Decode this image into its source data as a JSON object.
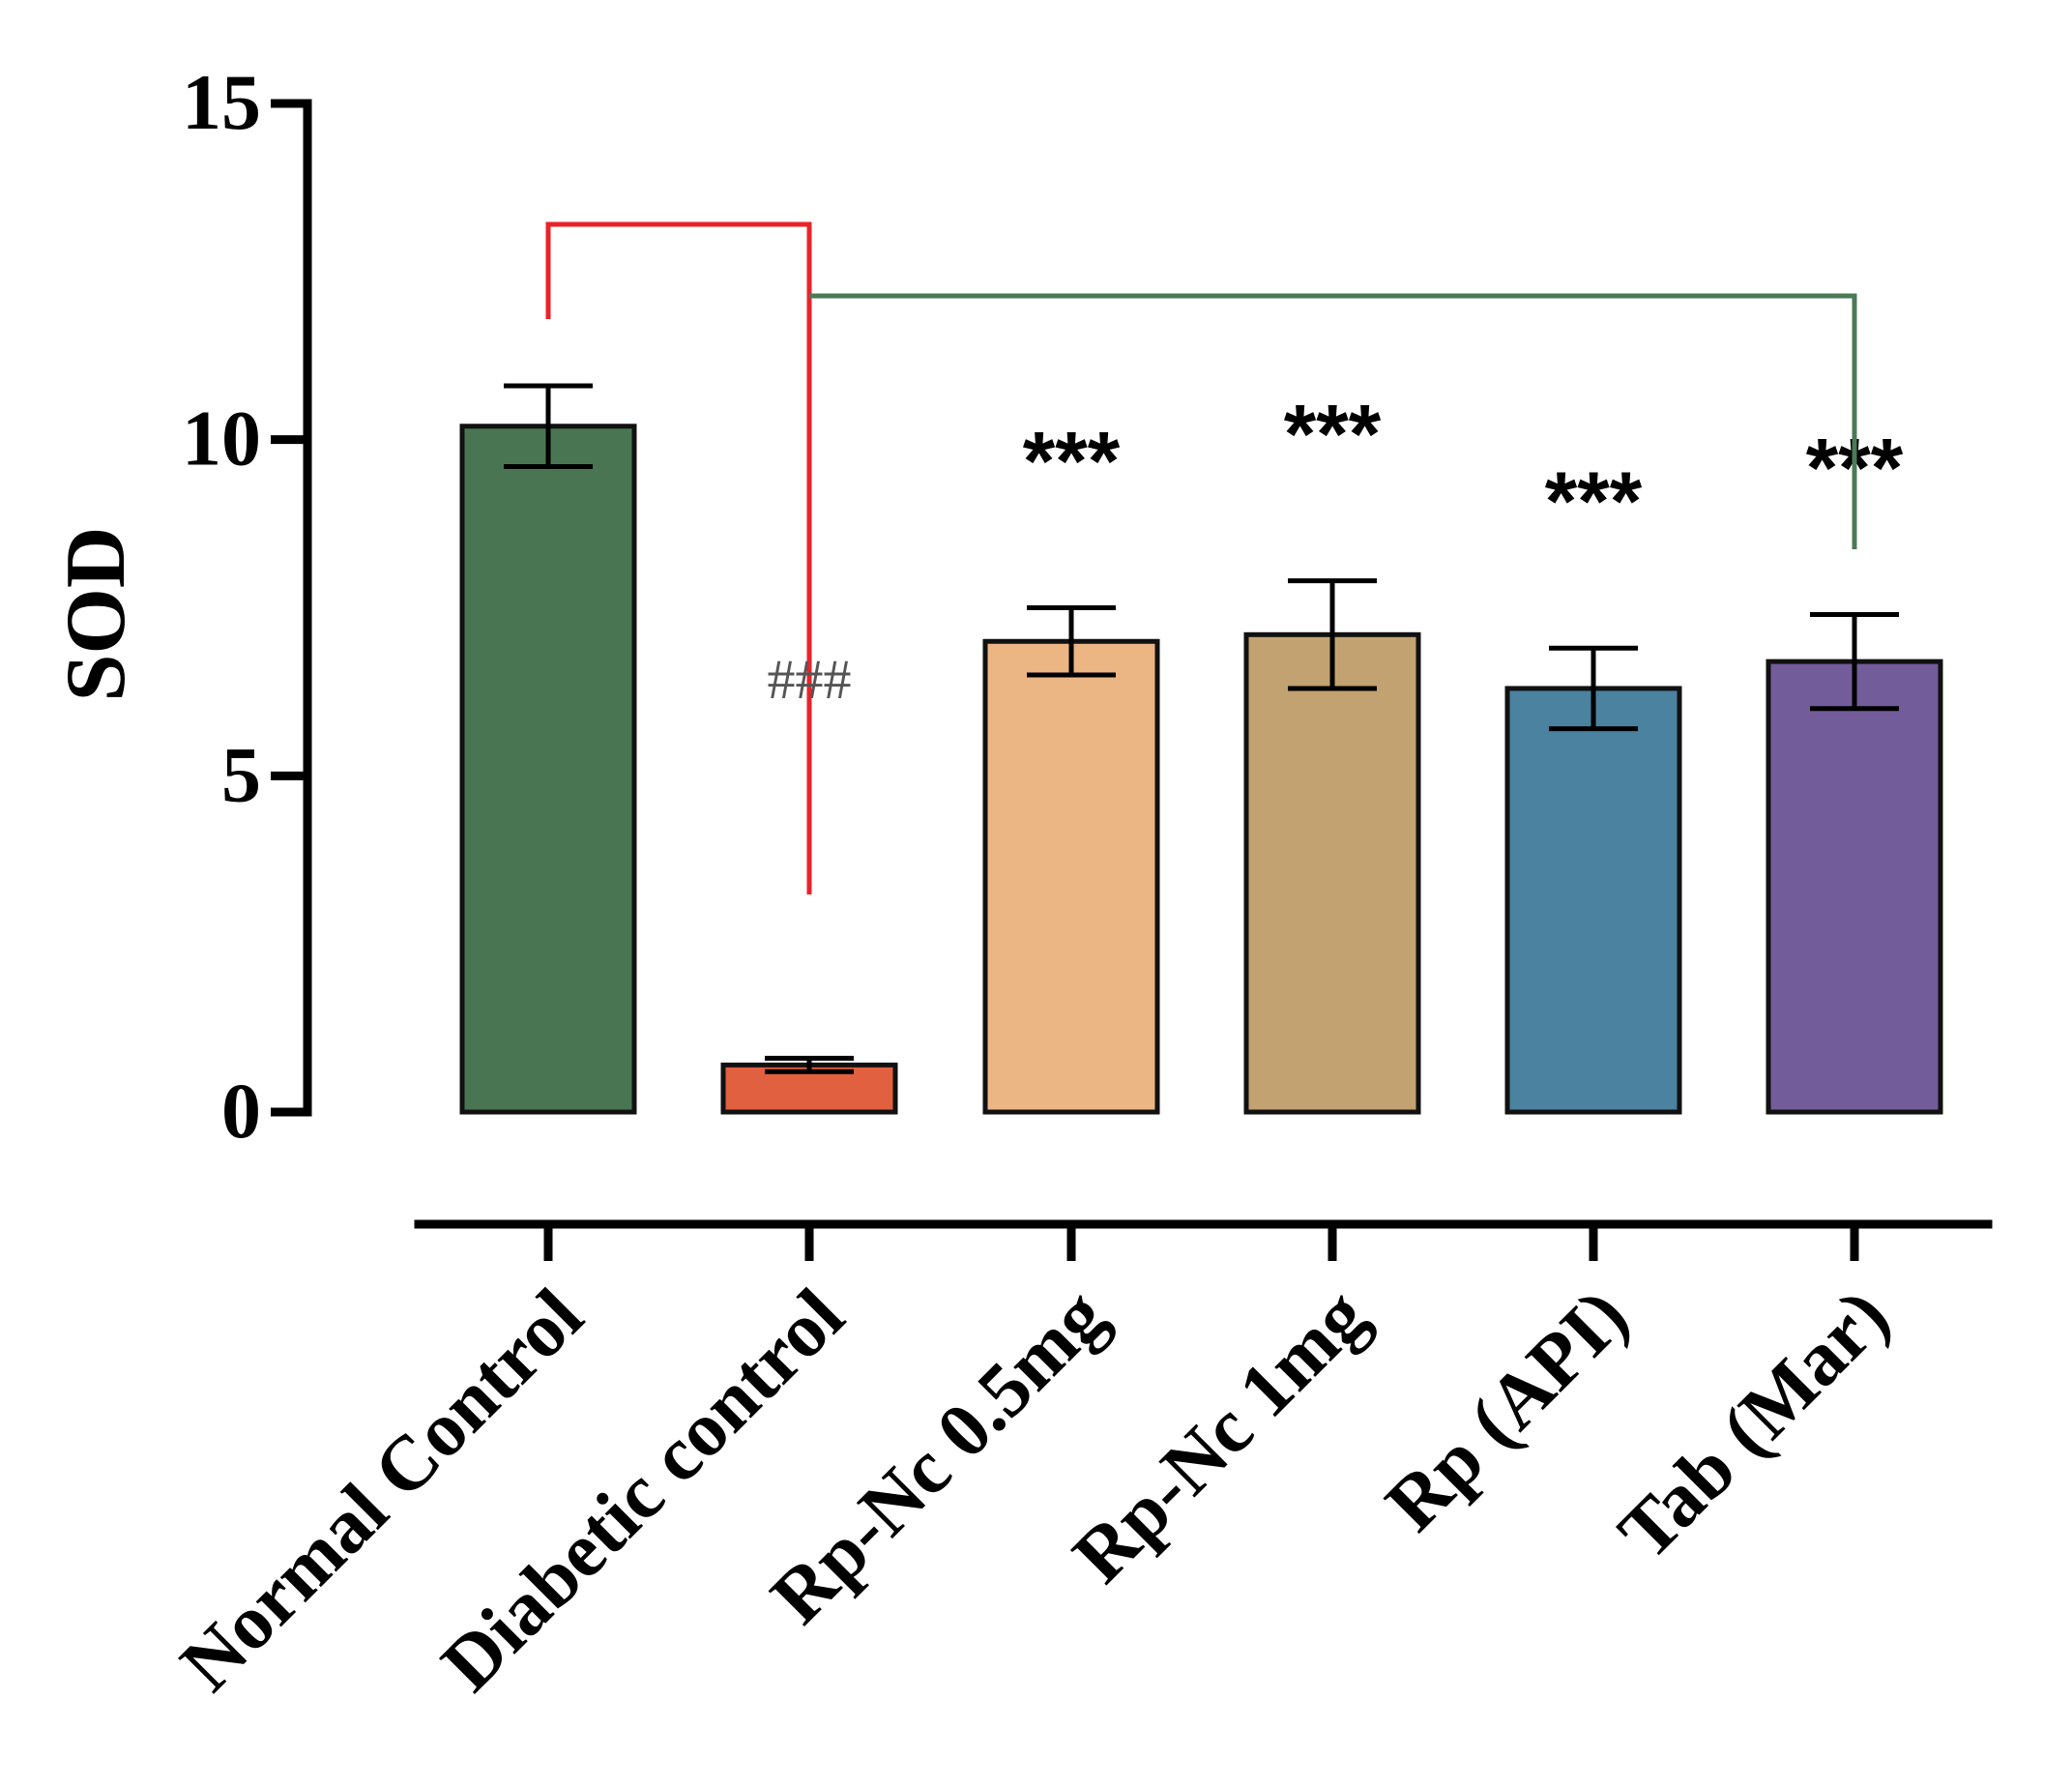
{
  "chart_data": {
    "type": "bar",
    "title": "",
    "xlabel": "",
    "ylabel": "SOD",
    "ylim": [
      0,
      15
    ],
    "yticks": [
      0,
      5,
      10,
      15
    ],
    "categories": [
      "Normal Control",
      "Diabetic control",
      "Rp-Nc 0.5mg",
      "Rp-Nc 1mg",
      "Rp (API)",
      "Tab (Mar)"
    ],
    "values": [
      10.2,
      0.7,
      7.0,
      7.1,
      6.3,
      6.7
    ],
    "errors": [
      0.6,
      0.1,
      0.5,
      0.8,
      0.6,
      0.7
    ],
    "colors": [
      "#4a7552",
      "#e06040",
      "#ecb584",
      "#c2a270",
      "#4a82a0",
      "#735c9a"
    ],
    "significance": [
      "",
      "",
      "***",
      "***",
      "***",
      "***"
    ],
    "annotations": {
      "hash_label": "###",
      "red_bracket": {
        "from": "Normal Control",
        "to": "Diabetic control",
        "color": "#e8232a"
      },
      "green_bracket": {
        "from": "Diabetic control",
        "to": "Tab (Mar)",
        "color": "#4a7a58"
      }
    }
  }
}
